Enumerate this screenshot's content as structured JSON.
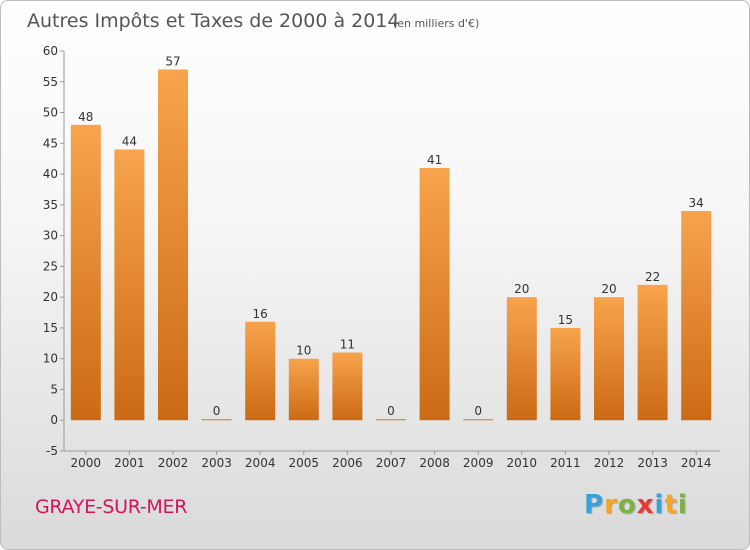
{
  "chart_data": {
    "type": "bar",
    "title": "Autres Impôts et Taxes de 2000 à 2014",
    "subtitle": "(en milliers d'€)",
    "categories": [
      "2000",
      "2001",
      "2002",
      "2003",
      "2004",
      "2005",
      "2006",
      "2007",
      "2008",
      "2009",
      "2010",
      "2011",
      "2012",
      "2013",
      "2014"
    ],
    "values": [
      48,
      44,
      57,
      0,
      16,
      10,
      11,
      0,
      41,
      0,
      20,
      15,
      20,
      22,
      34
    ],
    "ylim": [
      -5,
      60
    ],
    "yticks": [
      -5,
      0,
      5,
      10,
      15,
      20,
      25,
      30,
      35,
      40,
      45,
      50,
      55,
      60
    ],
    "xlabel": "",
    "ylabel": "",
    "grid": false,
    "bar_color": "#f0922e"
  },
  "footer": {
    "place": "GRAYE-SUR-MER",
    "brand_letters": [
      "P",
      "r",
      "o",
      "x",
      "i",
      "t",
      "i"
    ],
    "brand_colors": [
      "#3aa0dc",
      "#f5a623",
      "#7cb342",
      "#e53935",
      "#3aa0dc",
      "#f5a623",
      "#7cb342"
    ]
  }
}
